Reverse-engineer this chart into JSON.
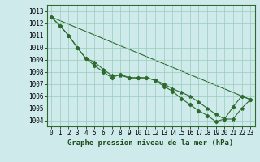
{
  "x": [
    0,
    1,
    2,
    3,
    4,
    5,
    6,
    7,
    8,
    9,
    10,
    11,
    12,
    13,
    14,
    15,
    16,
    17,
    18,
    19,
    20,
    21,
    22,
    23
  ],
  "series1": [
    1012.5,
    1011.8,
    1011.0,
    1010.0,
    1009.1,
    1008.8,
    1008.2,
    1007.7,
    1007.7,
    1007.5,
    1007.5,
    1007.5,
    1007.3,
    1007.0,
    1006.6,
    1006.3,
    1006.0,
    1005.5,
    1005.0,
    1004.5,
    1004.1,
    1004.1,
    1005.0,
    1005.7
  ],
  "series2": [
    1012.5,
    1011.8,
    1011.0,
    1010.0,
    1009.1,
    1008.5,
    1008.0,
    1007.5,
    1007.8,
    1007.5,
    1007.5,
    1007.5,
    1007.3,
    1006.8,
    1006.4,
    1005.8,
    1005.3,
    1004.8,
    1004.4,
    1003.9,
    1004.1,
    1005.1,
    1006.0,
    1005.7
  ],
  "line_color": "#2d6a2d",
  "bg_color": "#ceeaea",
  "grid_color": "#99ccbb",
  "xlabel": "Graphe pression niveau de la mer (hPa)",
  "ylim": [
    1003.5,
    1013.5
  ],
  "xlim": [
    -0.5,
    23.5
  ],
  "yticks": [
    1004,
    1005,
    1006,
    1007,
    1008,
    1009,
    1010,
    1011,
    1012,
    1013
  ],
  "xticks": [
    0,
    1,
    2,
    3,
    4,
    5,
    6,
    7,
    8,
    9,
    10,
    11,
    12,
    13,
    14,
    15,
    16,
    17,
    18,
    19,
    20,
    21,
    22,
    23
  ],
  "tick_fontsize": 5.5,
  "xlabel_fontsize": 6.5
}
